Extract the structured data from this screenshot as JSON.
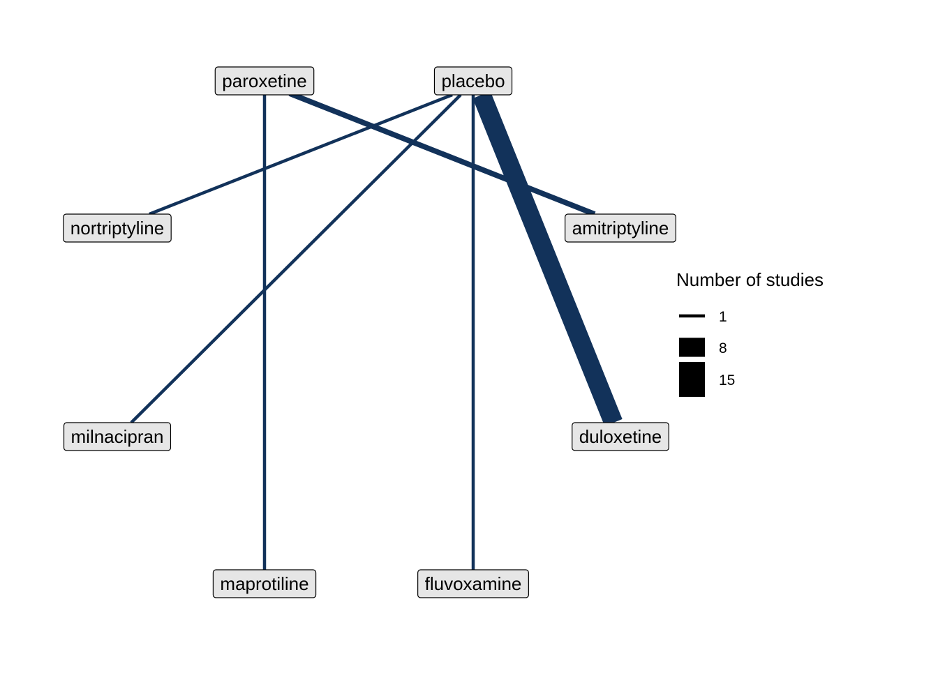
{
  "network": {
    "edge_color": "#12325A",
    "node_fill": "#E6E6E6",
    "node_border": "#000000",
    "nodes": [
      {
        "id": "paroxetine",
        "label": "paroxetine"
      },
      {
        "id": "placebo",
        "label": "placebo"
      },
      {
        "id": "nortriptyline",
        "label": "nortriptyline"
      },
      {
        "id": "amitriptyline",
        "label": "amitriptyline"
      },
      {
        "id": "milnacipran",
        "label": "milnacipran"
      },
      {
        "id": "duloxetine",
        "label": "duloxetine"
      },
      {
        "id": "maprotiline",
        "label": "maprotiline"
      },
      {
        "id": "fluvoxamine",
        "label": "fluvoxamine"
      }
    ],
    "edges": [
      {
        "from": "paroxetine",
        "to": "amitriptyline",
        "studies": 2
      },
      {
        "from": "paroxetine",
        "to": "maprotiline",
        "studies": 1
      },
      {
        "from": "placebo",
        "to": "nortriptyline",
        "studies": 1
      },
      {
        "from": "placebo",
        "to": "milnacipran",
        "studies": 1
      },
      {
        "from": "placebo",
        "to": "duloxetine",
        "studies": 8
      },
      {
        "from": "placebo",
        "to": "fluvoxamine",
        "studies": 1
      }
    ]
  },
  "legend": {
    "title": "Number of studies",
    "entries": [
      {
        "label": "1",
        "value": 1
      },
      {
        "label": "8",
        "value": 8
      },
      {
        "label": "15",
        "value": 15
      }
    ]
  }
}
